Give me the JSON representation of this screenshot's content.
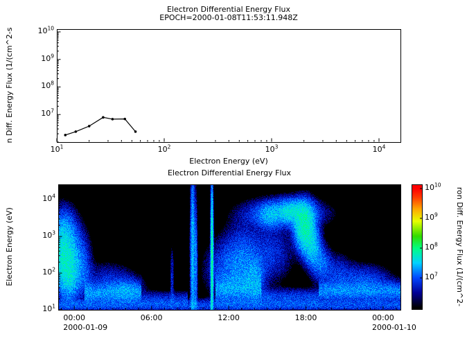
{
  "window": {
    "background": "#ffffff",
    "text_color": "#000000"
  },
  "chart_data": [
    {
      "type": "line",
      "title": "Electron Differential Energy Flux",
      "subtitle": "EPOCH=2000-01-08T11:53:11.948Z",
      "xlabel": "Electron Energy (eV)",
      "ylabel_visible": "n Diff. Energy Flux (1/(cm^2-s",
      "x_scale": "log",
      "y_scale": "log",
      "xlim_log": [
        1,
        4.2
      ],
      "ylim_log": [
        6,
        10.1
      ],
      "x_tick_exponents": [
        1,
        2,
        3,
        4
      ],
      "y_tick_exponents": [
        7,
        8,
        9,
        10
      ],
      "x_tick_labels": [
        "10^1",
        "10^2",
        "10^3",
        "10^4"
      ],
      "y_tick_labels": [
        "10^7",
        "10^8",
        "10^9",
        "10^10"
      ],
      "line_color": "#000000",
      "points": [
        [
          12,
          1800000
        ],
        [
          15,
          2400000
        ],
        [
          20,
          3800000
        ],
        [
          27,
          7900000
        ],
        [
          33,
          6800000
        ],
        [
          43,
          6900000
        ],
        [
          54,
          2400000
        ]
      ]
    },
    {
      "type": "heatmap",
      "title": "Electron Differential Energy Flux",
      "ylabel": "Electron Energy (eV)",
      "y_scale": "log",
      "ylim_log": [
        1,
        4.42
      ],
      "y_tick_exponents": [
        1,
        2,
        3,
        4
      ],
      "y_tick_labels": [
        "10^1",
        "10^2",
        "10^3",
        "10^4"
      ],
      "x_tick_labels": [
        "00:00",
        "06:00",
        "12:00",
        "18:00",
        "00:00"
      ],
      "x_tick_hours": [
        0,
        6,
        12,
        18,
        24
      ],
      "date_labels": [
        {
          "text": "2000-01-09",
          "tick_index": 0
        },
        {
          "text": "2000-01-10",
          "tick_index": 4
        }
      ],
      "time_range_hours": [
        -1.25,
        25.35
      ],
      "background": "#000000",
      "flux_log_range": [
        6,
        10
      ],
      "band_fields": [
        "t_start_h",
        "t_end_h",
        "logE_center",
        "logE_sigma",
        "log10_peak_flux"
      ],
      "bands": [
        [
          -1.3,
          25.4,
          1.12,
          0.1,
          6.95
        ],
        [
          0.8,
          5.2,
          1.45,
          0.16,
          7.25
        ],
        [
          5.2,
          8.8,
          1.3,
          0.12,
          6.75
        ],
        [
          11.0,
          14.5,
          1.55,
          0.22,
          7.2
        ],
        [
          14.5,
          19.0,
          1.35,
          0.13,
          6.9
        ],
        [
          19.0,
          25.4,
          1.5,
          0.16,
          7.2
        ]
      ],
      "blob_fields": [
        "t_center_h",
        "t_sigma_h",
        "logE_center",
        "logE_sigma",
        "log10_peak_flux"
      ],
      "blobs": [
        [
          -0.9,
          0.75,
          2.55,
          0.5,
          7.65
        ],
        [
          -0.4,
          0.5,
          1.95,
          0.4,
          7.5
        ],
        [
          -0.8,
          0.5,
          3.2,
          0.35,
          7.0
        ],
        [
          0.7,
          0.4,
          2.1,
          0.5,
          6.9
        ],
        [
          2.5,
          1.2,
          1.85,
          0.25,
          6.7
        ],
        [
          4.0,
          0.8,
          1.6,
          0.2,
          6.9
        ],
        [
          7.6,
          0.08,
          1.8,
          0.5,
          6.8
        ],
        [
          9.2,
          0.1,
          2.5,
          1.4,
          7.45
        ],
        [
          9.45,
          0.07,
          2.2,
          1.0,
          7.2
        ],
        [
          10.7,
          0.06,
          2.4,
          1.1,
          7.9
        ],
        [
          12.3,
          1.1,
          2.1,
          0.45,
          7.1
        ],
        [
          13.2,
          0.9,
          2.6,
          0.5,
          6.85
        ],
        [
          14.0,
          0.5,
          1.9,
          0.35,
          7.15
        ],
        [
          15.4,
          0.9,
          2.55,
          0.45,
          6.8
        ],
        [
          15.1,
          0.5,
          3.55,
          0.2,
          7.1
        ],
        [
          16.3,
          1.7,
          3.62,
          0.22,
          7.25
        ],
        [
          17.0,
          0.8,
          3.7,
          0.18,
          7.45
        ],
        [
          17.9,
          0.45,
          3.25,
          0.35,
          7.8
        ],
        [
          18.45,
          0.4,
          2.75,
          0.3,
          7.45
        ],
        [
          19.1,
          0.45,
          2.3,
          0.28,
          7.1
        ],
        [
          20.3,
          0.8,
          2.0,
          0.3,
          6.8
        ],
        [
          22.5,
          1.2,
          1.85,
          0.22,
          6.9
        ]
      ],
      "colorbar": {
        "label_visible": "ron Diff. Energy Flux (1/(cm^2-",
        "tick_exponents": [
          7,
          8,
          9,
          10
        ],
        "tick_labels": [
          "10^7",
          "10^8",
          "10^9",
          "10^10"
        ],
        "range_log": [
          5.93,
          10.14
        ],
        "stops": [
          [
            6.0,
            0,
            0,
            0
          ],
          [
            6.5,
            0,
            0,
            150
          ],
          [
            7.0,
            0,
            70,
            255
          ],
          [
            7.5,
            0,
            210,
            255
          ],
          [
            8.0,
            0,
            255,
            130
          ],
          [
            8.4,
            50,
            220,
            0
          ],
          [
            8.9,
            230,
            255,
            0
          ],
          [
            9.3,
            255,
            170,
            0
          ],
          [
            9.7,
            255,
            60,
            0
          ],
          [
            10.0,
            255,
            0,
            0
          ]
        ]
      }
    }
  ]
}
